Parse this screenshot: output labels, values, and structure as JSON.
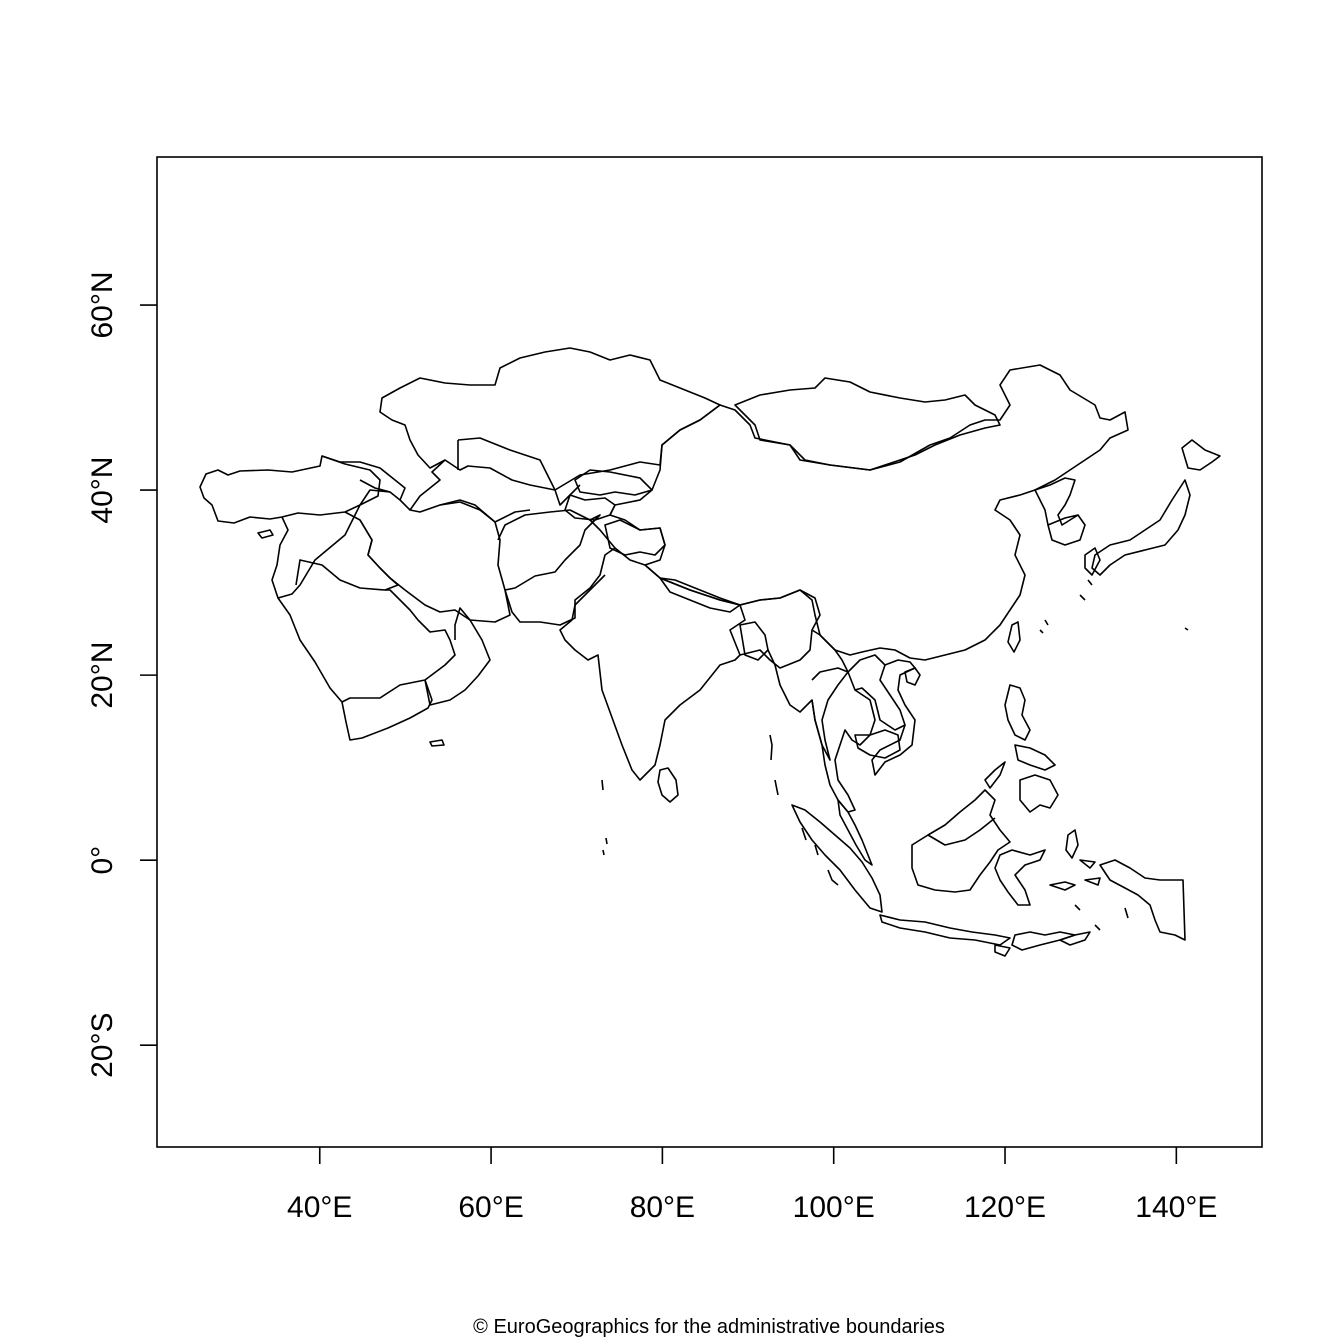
{
  "map": {
    "x_ticks": [
      {
        "value": 40,
        "label": "40°E"
      },
      {
        "value": 60,
        "label": "60°E"
      },
      {
        "value": 80,
        "label": "80°E"
      },
      {
        "value": 100,
        "label": "100°E"
      },
      {
        "value": 120,
        "label": "120°E"
      },
      {
        "value": 140,
        "label": "140°E"
      }
    ],
    "y_ticks": [
      {
        "value": 60,
        "label": "60°N"
      },
      {
        "value": 40,
        "label": "40°N"
      },
      {
        "value": 20,
        "label": "20°N"
      },
      {
        "value": 0,
        "label": "0°"
      },
      {
        "value": -20,
        "label": "20°S"
      }
    ],
    "xlim": [
      21,
      150
    ],
    "ylim": [
      -31,
      76
    ],
    "line_color": "#000000",
    "background": "#ffffff"
  },
  "credit": "© EuroGeographics for the administrative boundaries"
}
